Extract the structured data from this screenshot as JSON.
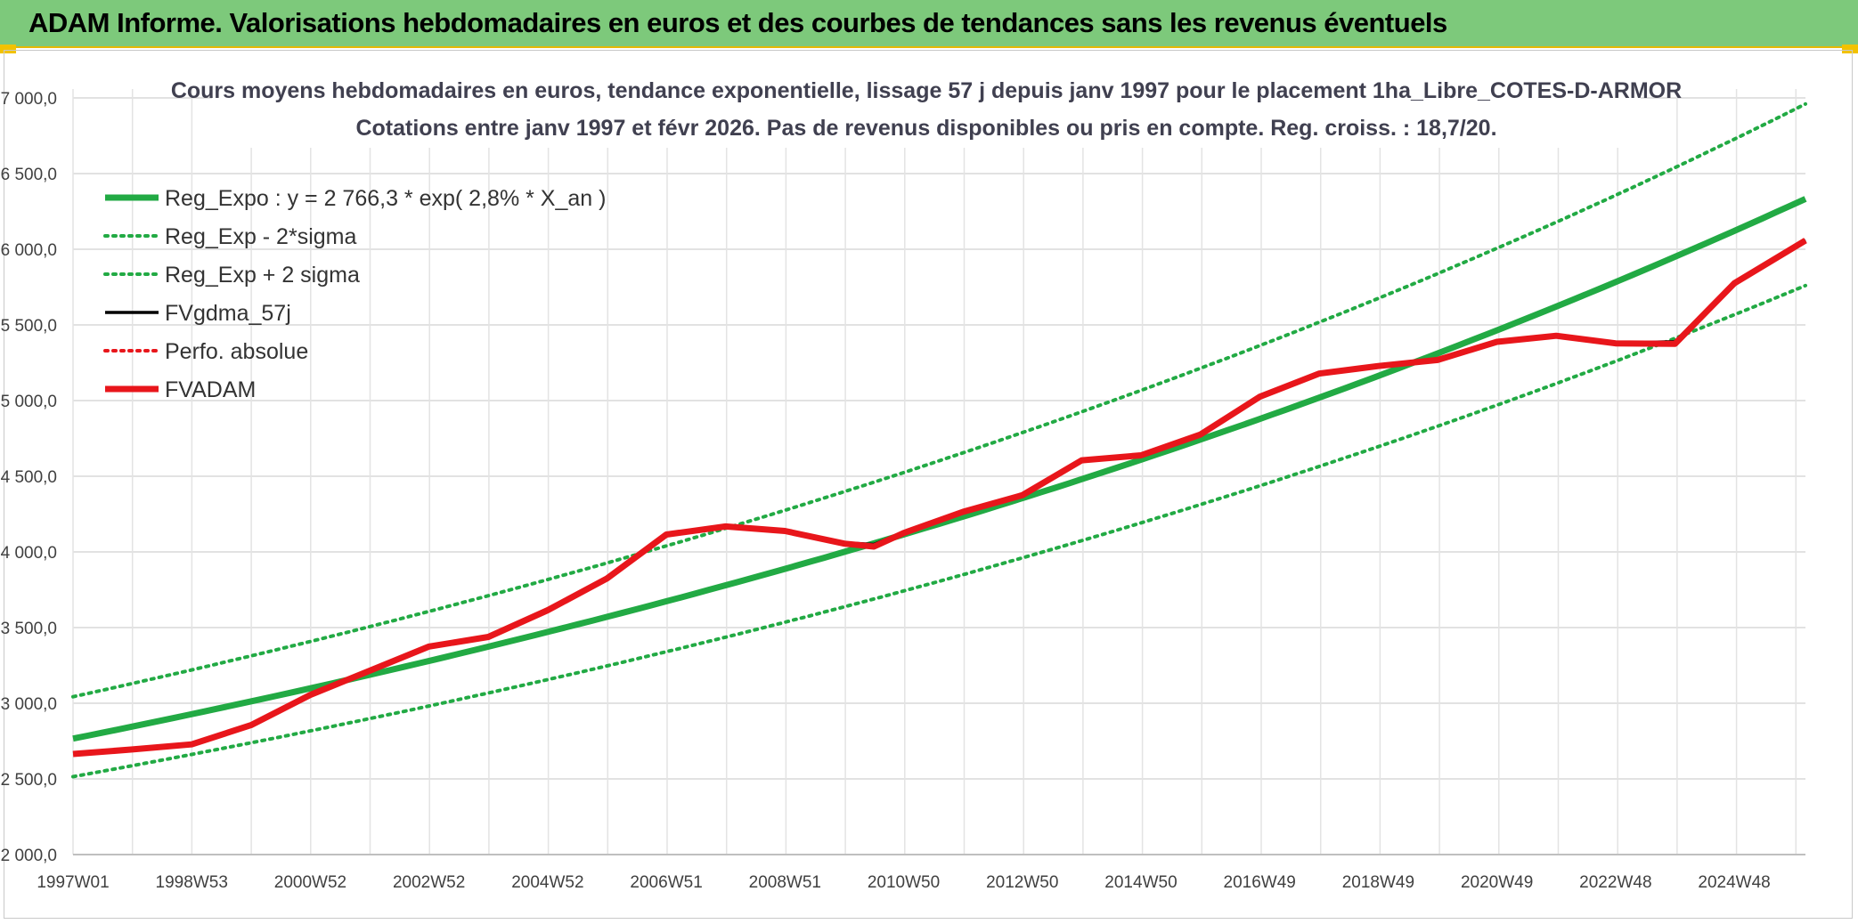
{
  "banner": {
    "title": "ADAM Informe. Valorisations hebdomadaires en euros et des courbes de tendances sans les revenus éventuels"
  },
  "colors": {
    "banner_bg": "#7dc97b",
    "reg_expo": "#22aa44",
    "fvgdma": "#000000",
    "fvadam": "#e8161b",
    "perfo": "#e8161b"
  },
  "chart_data": {
    "type": "line",
    "title": "Cours moyens hebdomadaires en euros, tendance exponentielle, lissage 57 j depuis janv 1997 pour le placement 1ha_Libre_COTES-D-ARMOR",
    "subtitle": "Cotations entre janv 1997 et févr 2026. Pas de revenus disponibles ou pris en compte. Reg. croiss. : 18,7/20.",
    "xlabel": "",
    "ylabel": "",
    "x_range": [
      1997.0,
      2026.2
    ],
    "ylim": [
      2000,
      7000
    ],
    "y_ticks": [
      2000,
      2500,
      3000,
      3500,
      4000,
      4500,
      5000,
      5500,
      6000,
      6500,
      7000
    ],
    "y_tick_labels": [
      "2 000,0",
      "2 500,0",
      "3 000,0",
      "3 500,0",
      "4 000,0",
      "4 500,0",
      "5 000,0",
      "5 500,0",
      "6 000,0",
      "6 500,0",
      "7 000,0"
    ],
    "x_ticks": [
      {
        "label": "1997W01",
        "x": 1997.0
      },
      {
        "label": "1998W53",
        "x": 1999.0
      },
      {
        "label": "2000W52",
        "x": 2001.0
      },
      {
        "label": "2002W52",
        "x": 2003.0
      },
      {
        "label": "2004W52",
        "x": 2005.0
      },
      {
        "label": "2006W51",
        "x": 2007.0
      },
      {
        "label": "2008W51",
        "x": 2009.0
      },
      {
        "label": "2010W50",
        "x": 2011.0
      },
      {
        "label": "2012W50",
        "x": 2013.0
      },
      {
        "label": "2014W50",
        "x": 2015.0
      },
      {
        "label": "2016W49",
        "x": 2017.0
      },
      {
        "label": "2018W49",
        "x": 2019.0
      },
      {
        "label": "2020W49",
        "x": 2021.0
      },
      {
        "label": "2022W48",
        "x": 2023.0
      },
      {
        "label": "2024W48",
        "x": 2025.0
      }
    ],
    "grid": true,
    "legend_position": "top-left",
    "series": [
      {
        "name": "Reg_Expo : y = 2 766,3 * exp( 2,8% *  X_an )",
        "style": "solid-thick",
        "color": "#22aa44",
        "x": [
          1997.0,
          2026.2
        ],
        "values": [
          2766.3,
          6333
        ]
      },
      {
        "name": "Reg_Exp - 2*sigma",
        "style": "dotted",
        "color": "#22aa44",
        "x": [
          1997.0,
          2026.2
        ],
        "values": [
          2515,
          5760
        ]
      },
      {
        "name": "Reg_Exp + 2 sigma",
        "style": "dotted",
        "color": "#22aa44",
        "x": [
          1997.0,
          2026.2
        ],
        "values": [
          3043,
          6960
        ]
      },
      {
        "name": "FVgdma_57j",
        "style": "solid",
        "color": "#000000",
        "x": [
          1997.0,
          1998.0,
          1999.0,
          2000.0,
          2001.0,
          2002.0,
          2003.0,
          2004.0,
          2005.0,
          2006.0,
          2007.0,
          2008.0,
          2009.0,
          2010.0,
          2010.5,
          2011.0,
          2012.0,
          2013.0,
          2014.0,
          2015.0,
          2016.0,
          2017.0,
          2018.0,
          2019.0,
          2020.0,
          2021.0,
          2022.0,
          2023.0,
          2024.0,
          2025.0,
          2026.2
        ],
        "values": [
          2670,
          2700,
          2730,
          2860,
          3060,
          3220,
          3380,
          3440,
          3620,
          3830,
          4120,
          4170,
          4140,
          4060,
          4050,
          4130,
          4270,
          4380,
          4610,
          4640,
          4780,
          5030,
          5180,
          5230,
          5270,
          5390,
          5430,
          5380,
          5390,
          5780,
          6060
        ]
      },
      {
        "name": "Perfo. absolue",
        "style": "dotted",
        "color": "#e8161b",
        "x": [],
        "values": []
      },
      {
        "name": "FVADAM",
        "style": "solid-thick",
        "color": "#e8161b",
        "x": [
          1997.0,
          1998.0,
          1999.0,
          2000.0,
          2001.0,
          2002.0,
          2003.0,
          2004.0,
          2005.0,
          2006.0,
          2007.0,
          2008.0,
          2009.0,
          2010.0,
          2010.5,
          2011.0,
          2012.0,
          2013.0,
          2014.0,
          2015.0,
          2016.0,
          2017.0,
          2018.0,
          2019.0,
          2020.0,
          2021.0,
          2022.0,
          2023.0,
          2024.0,
          2025.0,
          2026.2
        ],
        "values": [
          2665,
          2695,
          2728,
          2855,
          3055,
          3215,
          3375,
          3438,
          3615,
          3825,
          4115,
          4168,
          4138,
          4055,
          4035,
          4125,
          4265,
          4375,
          4605,
          4638,
          4775,
          5025,
          5178,
          5228,
          5268,
          5388,
          5428,
          5378,
          5375,
          5775,
          6058
        ]
      }
    ]
  }
}
